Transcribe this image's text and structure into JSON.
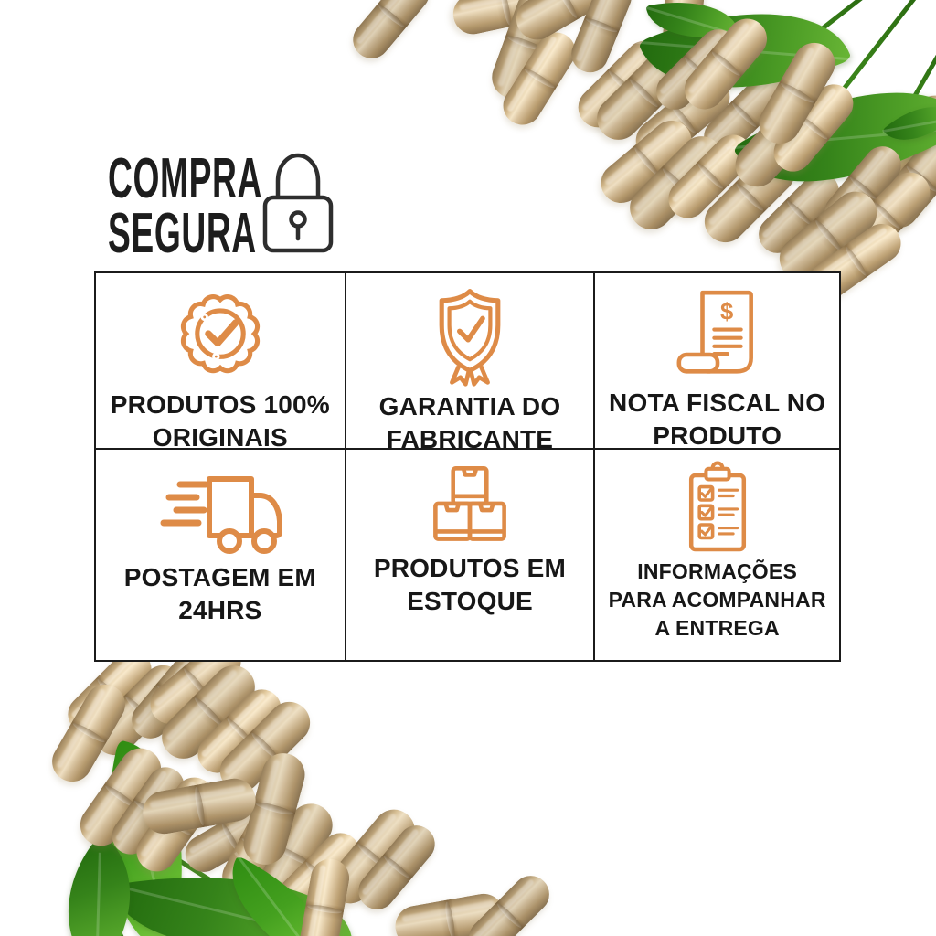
{
  "header": {
    "title_line1": "COMPRA",
    "title_line2": "SEGURA",
    "icon": "padlock-icon"
  },
  "features": [
    {
      "icon": "badge-check-icon",
      "label": "PRODUTOS 100% ORIGINAIS"
    },
    {
      "icon": "shield-check-icon",
      "label": "GARANTIA DO FABRICANTE"
    },
    {
      "icon": "invoice-icon",
      "label": "NOTA FISCAL NO PRODUTO"
    },
    {
      "icon": "delivery-truck-icon",
      "label": "POSTAGEM EM 24HRS"
    },
    {
      "icon": "stock-boxes-icon",
      "label": "PRODUTOS EM ESTOQUE"
    },
    {
      "icon": "delivery-checklist-icon",
      "label": "INFORMAÇÕES PARA ACOMPANHAR A ENTREGA"
    }
  ],
  "colors": {
    "accent_orange": "#DE8B47",
    "text_black": "#171717",
    "grid_border": "#1B1B1B",
    "leaf_green": "#3C8C1B",
    "capsule_tan": "#C6AB80",
    "background": "#FFFFFF"
  }
}
